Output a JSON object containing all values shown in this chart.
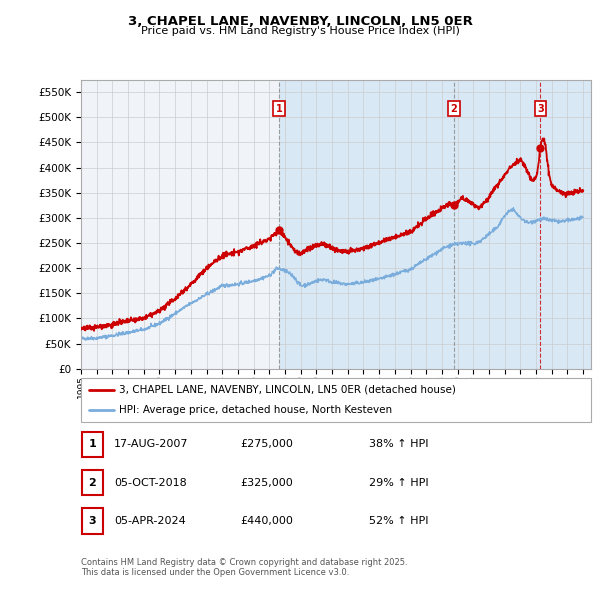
{
  "title": "3, CHAPEL LANE, NAVENBY, LINCOLN, LN5 0ER",
  "subtitle": "Price paid vs. HM Land Registry's House Price Index (HPI)",
  "ylim": [
    0,
    575000
  ],
  "yticks": [
    0,
    50000,
    100000,
    150000,
    200000,
    250000,
    300000,
    350000,
    400000,
    450000,
    500000,
    550000
  ],
  "xlim_start": 1995.0,
  "xlim_end": 2027.5,
  "legend_property_label": "3, CHAPEL LANE, NAVENBY, LINCOLN, LN5 0ER (detached house)",
  "legend_hpi_label": "HPI: Average price, detached house, North Kesteven",
  "property_color": "#cc0000",
  "hpi_color": "#7aaddc",
  "sale_points": [
    {
      "label": "1",
      "date": 2007.63,
      "price": 275000,
      "text_date": "17-AUG-2007",
      "text_price": "£275,000",
      "text_change": "38% ↑ HPI"
    },
    {
      "label": "2",
      "date": 2018.76,
      "price": 325000,
      "text_date": "05-OCT-2018",
      "text_price": "£325,000",
      "text_change": "29% ↑ HPI"
    },
    {
      "label": "3",
      "date": 2024.27,
      "price": 440000,
      "text_date": "05-APR-2024",
      "text_price": "£440,000",
      "text_change": "52% ↑ HPI"
    }
  ],
  "shade_color": "#d8e8f5",
  "footnote": "Contains HM Land Registry data © Crown copyright and database right 2025.\nThis data is licensed under the Open Government Licence v3.0.",
  "background_color": "#f0f4f8",
  "grid_color": "#cccccc"
}
